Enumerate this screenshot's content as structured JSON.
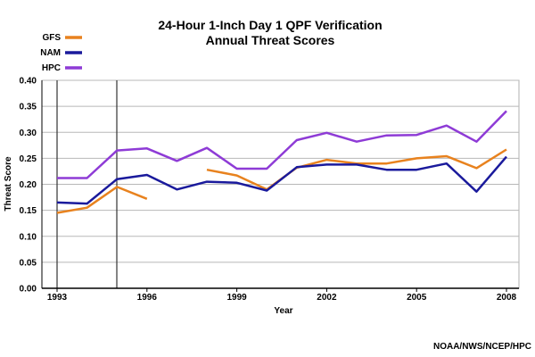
{
  "chart_data": {
    "type": "line",
    "title": "24-Hour 1-Inch Day 1 QPF Verification",
    "subtitle": "Annual Threat Scores",
    "xlabel": "Year",
    "ylabel": "Threat Score",
    "xlim": [
      1993,
      2008
    ],
    "ylim": [
      0,
      0.4
    ],
    "yticks": [
      "0.00",
      "0.05",
      "0.10",
      "0.15",
      "0.20",
      "0.25",
      "0.30",
      "0.35",
      "0.40"
    ],
    "xticks": [
      "1993",
      "1996",
      "1999",
      "2002",
      "2005",
      "2008"
    ],
    "grid": true,
    "legend": "top-left",
    "x": [
      1993,
      1994,
      1995,
      1996,
      1997,
      1998,
      1999,
      2000,
      2001,
      2002,
      2003,
      2004,
      2005,
      2006,
      2007,
      2008
    ],
    "series": [
      {
        "name": "GFS",
        "color": "#e8821e",
        "values": [
          0.145,
          0.155,
          0.195,
          0.172,
          null,
          0.228,
          0.217,
          0.19,
          0.232,
          0.247,
          0.24,
          0.24,
          0.25,
          0.254,
          0.231,
          0.267
        ]
      },
      {
        "name": "NAM",
        "color": "#1a1a9c",
        "values": [
          0.165,
          0.163,
          0.21,
          0.218,
          0.19,
          0.205,
          0.203,
          0.188,
          0.233,
          0.238,
          0.238,
          0.228,
          0.228,
          0.24,
          0.186,
          0.253
        ]
      },
      {
        "name": "HPC",
        "color": "#8e3bd6",
        "values": [
          0.212,
          0.212,
          0.265,
          0.269,
          0.245,
          0.27,
          0.23,
          0.23,
          0.285,
          0.299,
          0.282,
          0.294,
          0.295,
          0.313,
          0.282,
          0.341
        ]
      }
    ],
    "credit": "NOAA/NWS/NCEP/HPC"
  }
}
